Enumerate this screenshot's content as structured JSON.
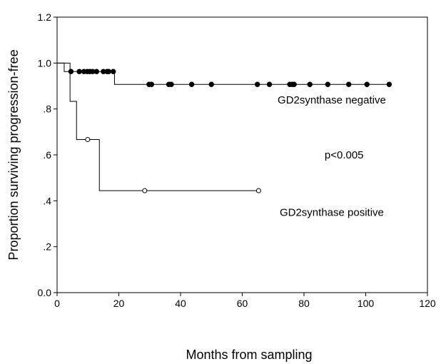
{
  "chart_data": {
    "type": "line",
    "subtype": "kaplan-meier-survival",
    "xlabel": "Months from sampling",
    "ylabel": "Proportion surviving progression-free",
    "xlim": [
      0,
      120
    ],
    "ylim": [
      0,
      1.2
    ],
    "x_ticks": [
      0,
      20,
      40,
      60,
      80,
      100,
      120
    ],
    "x_tick_labels": [
      "0",
      "20",
      "40",
      "60",
      "80",
      "100",
      "120"
    ],
    "y_ticks": [
      0,
      0.2,
      0.4,
      0.6,
      0.8,
      1.0,
      1.2
    ],
    "y_tick_labels": [
      "0.0",
      ".2",
      ".4",
      ".6",
      ".8",
      "1.0",
      "1.2"
    ],
    "grid": false,
    "series": [
      {
        "name": "GD2synthase negative",
        "color": "#000000",
        "censor_marker": "filled-circle",
        "steps": [
          [
            0,
            1.0
          ],
          [
            2.3,
            0.963
          ],
          [
            18.6,
            0.907
          ],
          [
            108,
            0.907
          ]
        ],
        "censored": [
          [
            4.5,
            0.963
          ],
          [
            7.2,
            0.963
          ],
          [
            8.7,
            0.963
          ],
          [
            9.8,
            0.963
          ],
          [
            10.6,
            0.963
          ],
          [
            11.5,
            0.963
          ],
          [
            12.8,
            0.963
          ],
          [
            15.0,
            0.963
          ],
          [
            16.2,
            0.963
          ],
          [
            16.7,
            0.963
          ],
          [
            18.2,
            0.963
          ],
          [
            29.8,
            0.907
          ],
          [
            30.6,
            0.907
          ],
          [
            36.2,
            0.907
          ],
          [
            37.0,
            0.907
          ],
          [
            43.6,
            0.907
          ],
          [
            50.0,
            0.907
          ],
          [
            64.9,
            0.907
          ],
          [
            68.8,
            0.907
          ],
          [
            75.4,
            0.907
          ],
          [
            76.2,
            0.907
          ],
          [
            76.8,
            0.907
          ],
          [
            81.9,
            0.907
          ],
          [
            87.7,
            0.907
          ],
          [
            94.5,
            0.907
          ],
          [
            100.4,
            0.907
          ],
          [
            107.6,
            0.907
          ]
        ]
      },
      {
        "name": "GD2synthase positive",
        "color": "#000000",
        "censor_marker": "open-circle",
        "steps": [
          [
            0,
            1.0
          ],
          [
            4.2,
            0.833
          ],
          [
            6.3,
            0.667
          ],
          [
            13.7,
            0.444
          ],
          [
            65.3,
            0.444
          ]
        ],
        "censored": [
          [
            9.9,
            0.667
          ],
          [
            28.4,
            0.444
          ],
          [
            65.3,
            0.444
          ]
        ]
      }
    ],
    "annotations": [
      {
        "text": "GD2synthase negative",
        "x": 89,
        "y": 0.84
      },
      {
        "text": "p<0.005",
        "x": 93,
        "y": 0.6
      },
      {
        "text": "GD2synthase positive",
        "x": 89,
        "y": 0.35
      }
    ]
  }
}
